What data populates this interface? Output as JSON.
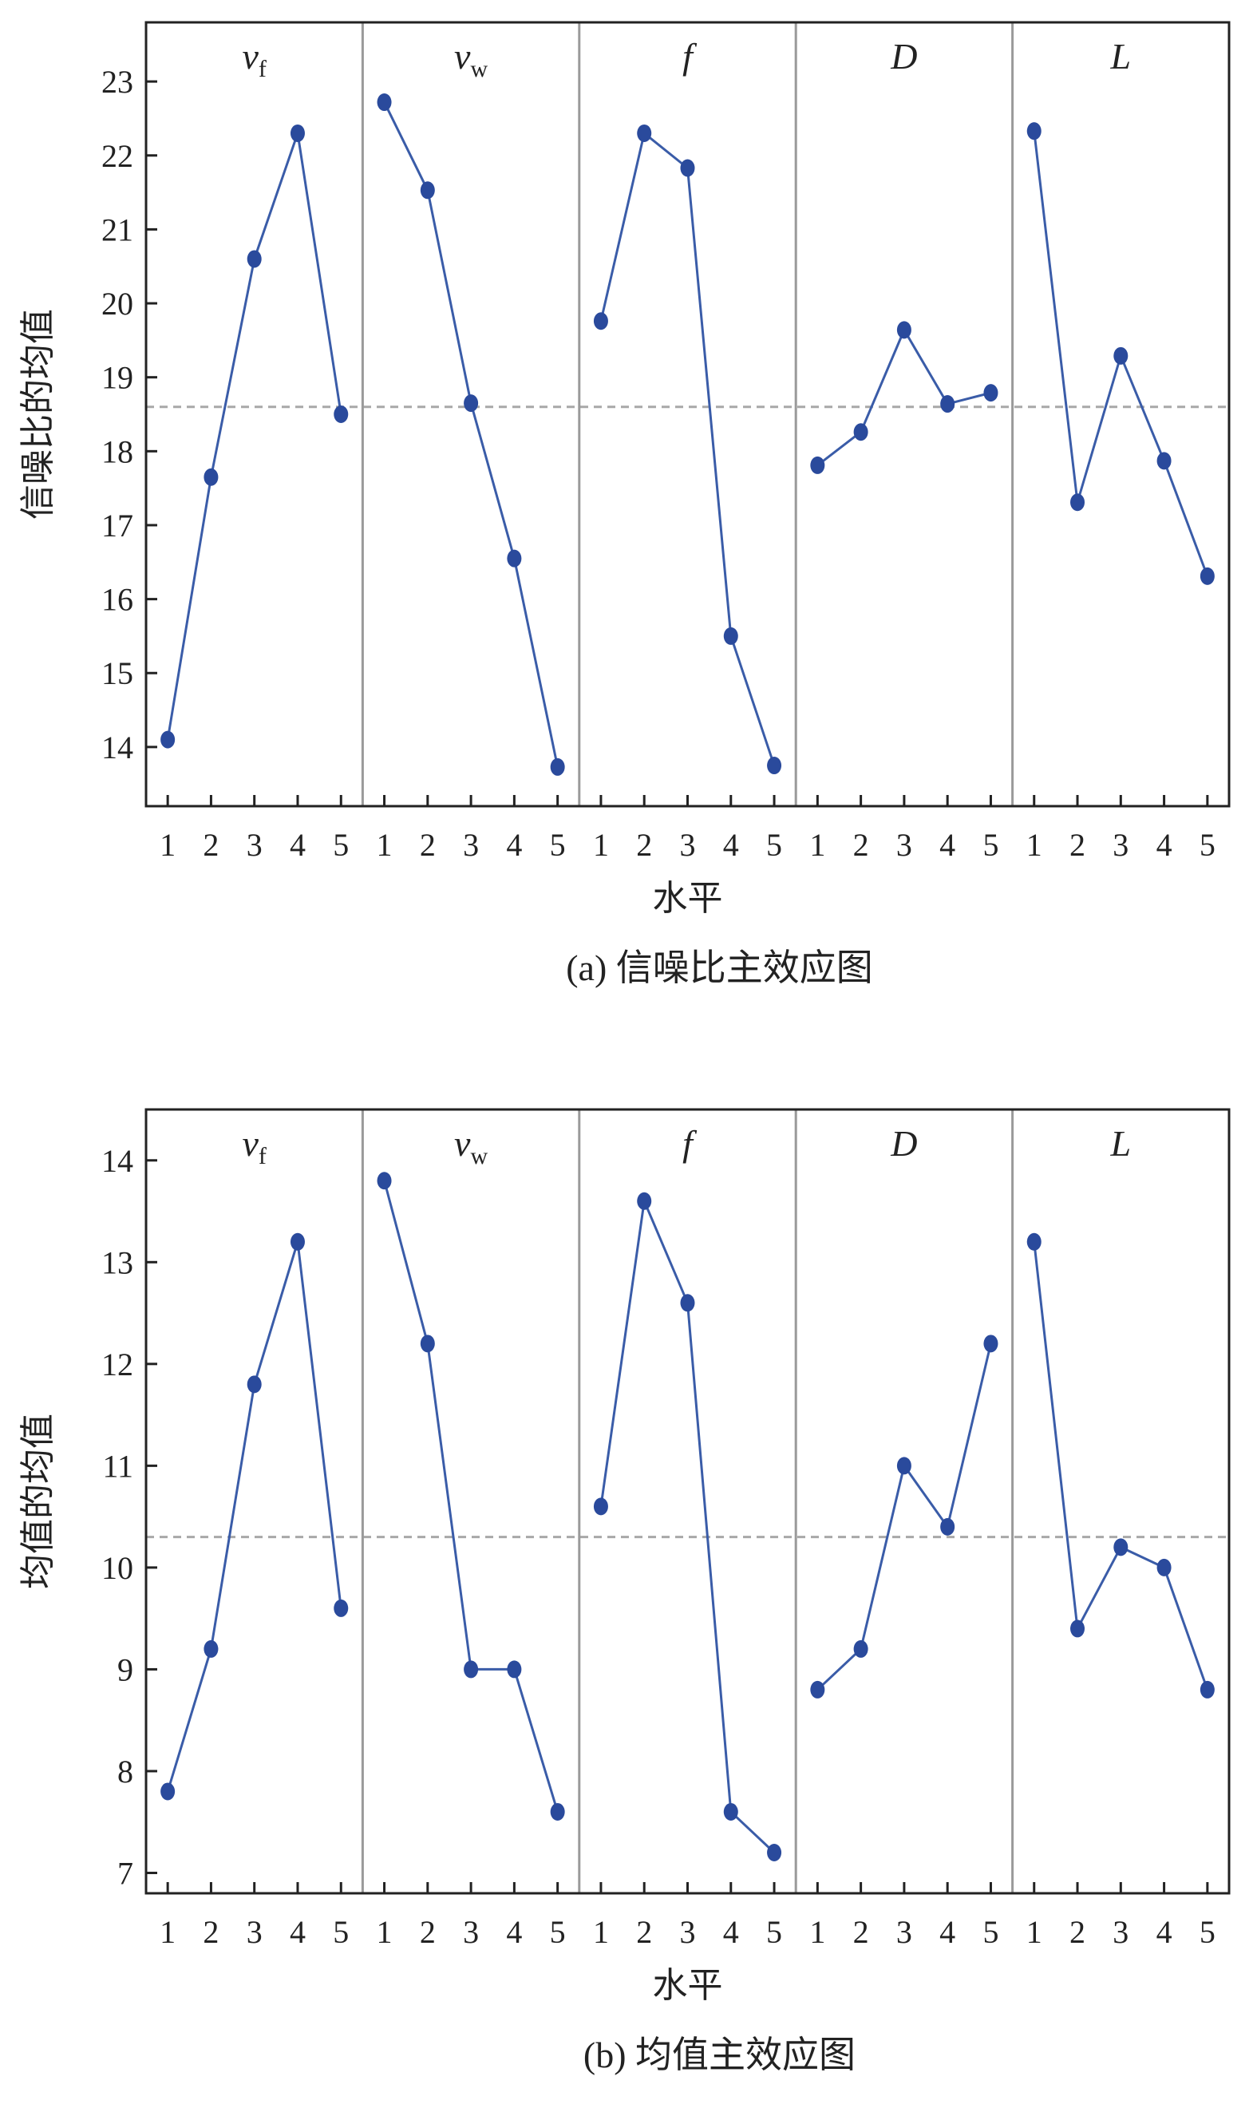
{
  "chart_data": [
    {
      "type": "line",
      "caption": "(a) 信噪比主效应图",
      "xlabel": "水平",
      "ylabel": "信噪比的均值",
      "ylim": [
        13.2,
        23.8
      ],
      "yticks": [
        14,
        15,
        16,
        17,
        18,
        19,
        20,
        21,
        22,
        23
      ],
      "reference_line": 18.6,
      "levels": [
        "1",
        "2",
        "3",
        "4",
        "5"
      ],
      "panels": [
        {
          "label": "v",
          "subscript": "f",
          "values": [
            14.1,
            17.65,
            20.6,
            22.3,
            18.5
          ]
        },
        {
          "label": "v",
          "subscript": "w",
          "values": [
            22.72,
            21.53,
            18.65,
            16.55,
            13.73
          ]
        },
        {
          "label": "f",
          "subscript": "",
          "values": [
            19.76,
            22.3,
            21.83,
            15.5,
            13.75
          ]
        },
        {
          "label": "D",
          "subscript": "",
          "values": [
            17.81,
            18.26,
            19.64,
            18.64,
            18.79
          ]
        },
        {
          "label": "L",
          "subscript": "",
          "values": [
            22.33,
            17.31,
            19.29,
            17.87,
            16.31
          ]
        }
      ],
      "grid": false,
      "colors": {
        "line": "#3a5ca8",
        "marker": "#2a4a9c",
        "reference": "#a8a8a8",
        "separator": "#9a9a9a"
      }
    },
    {
      "type": "line",
      "caption": "(b) 均值主效应图",
      "xlabel": "水平",
      "ylabel": "均值的均值",
      "ylim": [
        6.8,
        14.5
      ],
      "yticks": [
        7,
        8,
        9,
        10,
        11,
        12,
        13,
        14
      ],
      "reference_line": 10.3,
      "levels": [
        "1",
        "2",
        "3",
        "4",
        "5"
      ],
      "panels": [
        {
          "label": "v",
          "subscript": "f",
          "values": [
            7.8,
            9.2,
            11.8,
            13.2,
            9.6
          ]
        },
        {
          "label": "v",
          "subscript": "w",
          "values": [
            13.8,
            12.2,
            9.0,
            9.0,
            7.6
          ]
        },
        {
          "label": "f",
          "subscript": "",
          "values": [
            10.6,
            13.6,
            12.6,
            7.6,
            7.2
          ]
        },
        {
          "label": "D",
          "subscript": "",
          "values": [
            8.8,
            9.2,
            11.0,
            10.4,
            12.2
          ]
        },
        {
          "label": "L",
          "subscript": "",
          "values": [
            13.2,
            9.4,
            10.2,
            10.0,
            8.8
          ]
        }
      ],
      "grid": false,
      "colors": {
        "line": "#3a5ca8",
        "marker": "#2a4a9c",
        "reference": "#a8a8a8",
        "separator": "#9a9a9a"
      }
    }
  ]
}
